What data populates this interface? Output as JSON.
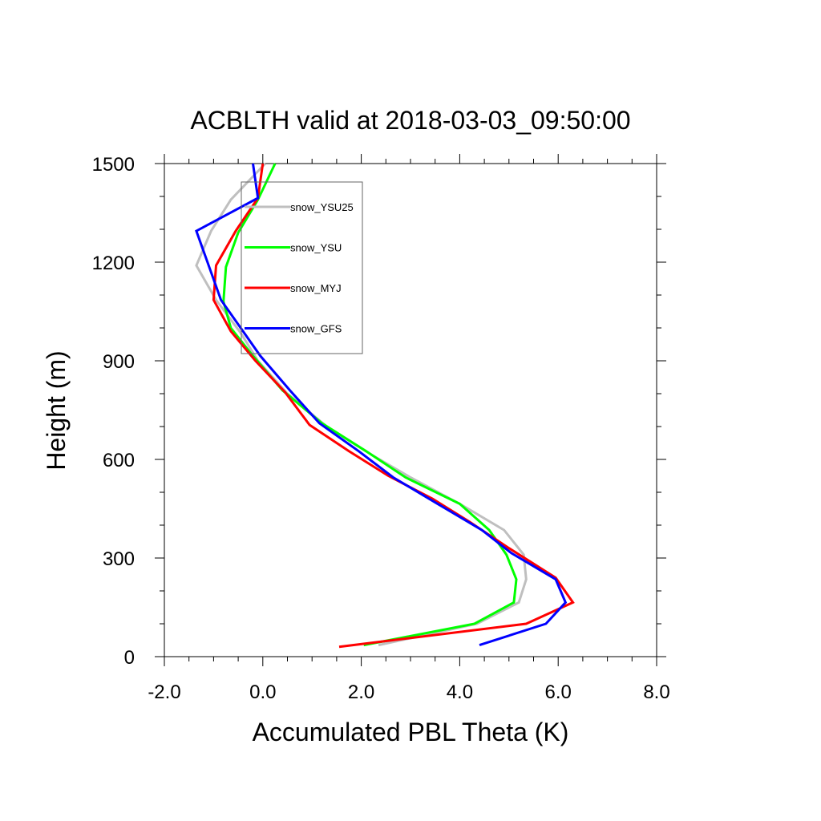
{
  "chart_data": {
    "type": "line",
    "title": "ACBLTH valid at 2018-03-03_09:50:00",
    "xlabel": "Accumulated PBL Theta (K)",
    "ylabel": "Height (m)",
    "xlim": [
      -2.0,
      8.0
    ],
    "ylim": [
      0,
      1500
    ],
    "x_ticks": [
      -2.0,
      0.0,
      2.0,
      4.0,
      6.0,
      8.0
    ],
    "x_tick_labels": [
      "-2.0",
      "0.0",
      "2.0",
      "4.0",
      "6.0",
      "8.0"
    ],
    "y_ticks": [
      0,
      300,
      600,
      900,
      1200,
      1500
    ],
    "y_tick_labels": [
      "0",
      "300",
      "600",
      "900",
      "1200",
      "1500"
    ],
    "grid": false,
    "legend_position": "top-left",
    "series": [
      {
        "name": "snow_YSU25",
        "color": "#bfbfbf",
        "x": [
          2.35,
          4.35,
          5.2,
          5.35,
          5.3,
          4.9,
          4.0,
          3.0,
          2.2,
          1.3,
          0.5,
          -0.1,
          -0.45,
          -0.95,
          -1.35,
          -1.05,
          -0.65,
          0.05
        ],
        "y": [
          35,
          100,
          165,
          235,
          310,
          385,
          465,
          545,
          615,
          700,
          800,
          900,
          985,
          1085,
          1190,
          1295,
          1390,
          1500
        ]
      },
      {
        "name": "snow_YSU",
        "color": "#00ff00",
        "x": [
          2.05,
          4.3,
          5.1,
          5.15,
          4.95,
          4.6,
          4.0,
          2.9,
          2.1,
          1.2,
          0.4,
          -0.2,
          -0.65,
          -0.8,
          -0.75,
          -0.5,
          -0.1,
          0.25
        ],
        "y": [
          35,
          100,
          165,
          235,
          310,
          385,
          465,
          545,
          625,
          710,
          810,
          915,
          1000,
          1080,
          1185,
          1290,
          1390,
          1500
        ]
      },
      {
        "name": "snow_MYJ",
        "color": "#ff0000",
        "x": [
          1.55,
          5.35,
          6.3,
          5.95,
          5.0,
          4.2,
          3.45,
          2.55,
          1.75,
          0.95,
          0.45,
          -0.15,
          -0.65,
          -1.0,
          -0.95,
          -0.55,
          -0.1,
          0.0
        ],
        "y": [
          30,
          100,
          165,
          240,
          330,
          410,
          480,
          550,
          625,
          705,
          805,
          900,
          990,
          1085,
          1190,
          1295,
          1395,
          1500
        ]
      },
      {
        "name": "snow_GFS",
        "color": "#0000ff",
        "x": [
          4.4,
          5.75,
          6.15,
          5.95,
          5.05,
          4.45,
          3.55,
          2.65,
          1.95,
          1.15,
          0.55,
          -0.05,
          -0.45,
          -0.85,
          -1.35,
          -0.1,
          -0.2
        ],
        "y": [
          35,
          100,
          165,
          235,
          315,
          385,
          465,
          545,
          625,
          710,
          810,
          915,
          1000,
          1085,
          1295,
          1395,
          1500
        ]
      }
    ]
  }
}
